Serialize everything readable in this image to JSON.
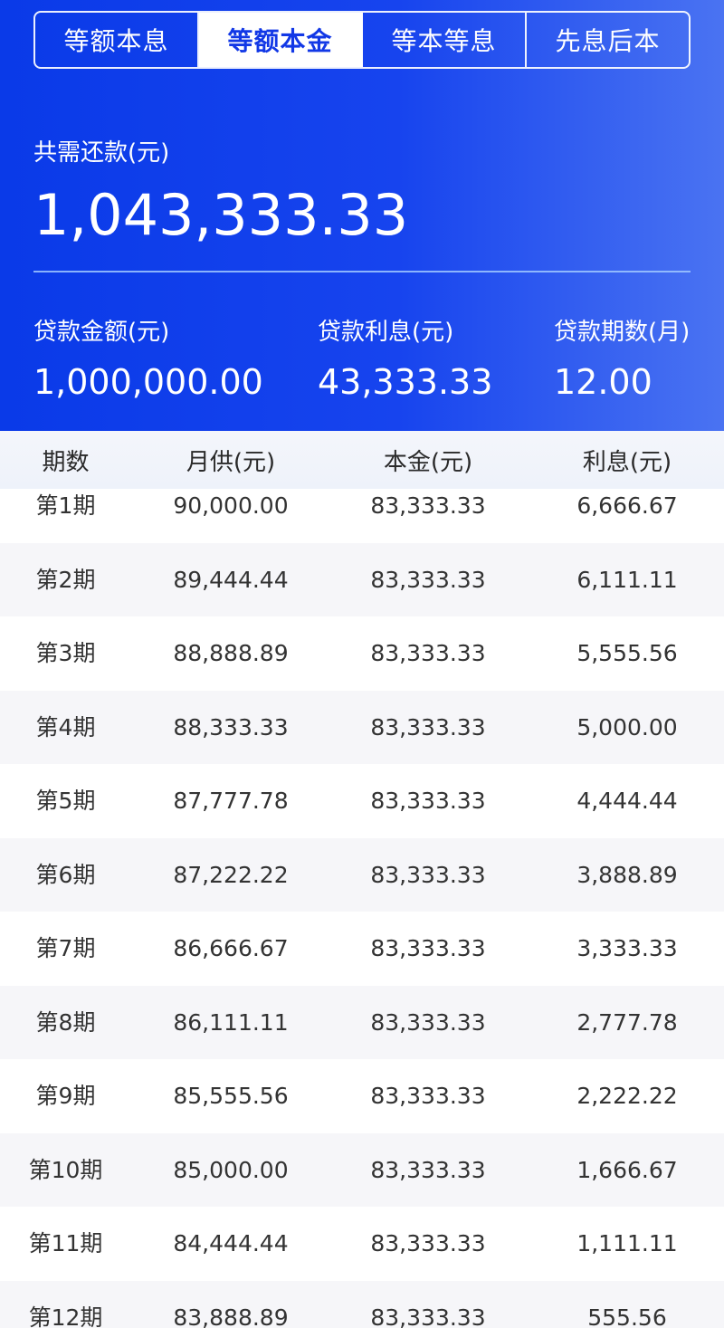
{
  "tabs": [
    {
      "label": "等额本息",
      "active": false
    },
    {
      "label": "等额本金",
      "active": true
    },
    {
      "label": "等本等息",
      "active": false
    },
    {
      "label": "先息后本",
      "active": false
    }
  ],
  "summary": {
    "total_label": "共需还款(元)",
    "total_value": "1,043,333.33",
    "loan_amount_label": "贷款金额(元)",
    "loan_amount_value": "1,000,000.00",
    "interest_label": "贷款利息(元)",
    "interest_value": "43,333.33",
    "months_label": "贷款期数(月)",
    "months_value": "12.00"
  },
  "table": {
    "headers": [
      "期数",
      "月供(元)",
      "本金(元)",
      "利息(元)"
    ],
    "rows": [
      [
        "第1期",
        "90,000.00",
        "83,333.33",
        "6,666.67"
      ],
      [
        "第2期",
        "89,444.44",
        "83,333.33",
        "6,111.11"
      ],
      [
        "第3期",
        "88,888.89",
        "83,333.33",
        "5,555.56"
      ],
      [
        "第4期",
        "88,333.33",
        "83,333.33",
        "5,000.00"
      ],
      [
        "第5期",
        "87,777.78",
        "83,333.33",
        "4,444.44"
      ],
      [
        "第6期",
        "87,222.22",
        "83,333.33",
        "3,888.89"
      ],
      [
        "第7期",
        "86,666.67",
        "83,333.33",
        "3,333.33"
      ],
      [
        "第8期",
        "86,111.11",
        "83,333.33",
        "2,777.78"
      ],
      [
        "第9期",
        "85,555.56",
        "83,333.33",
        "2,222.22"
      ],
      [
        "第10期",
        "85,000.00",
        "83,333.33",
        "1,666.67"
      ],
      [
        "第11期",
        "84,444.44",
        "83,333.33",
        "1,111.11"
      ],
      [
        "第12期",
        "83,888.89",
        "83,333.33",
        "555.56"
      ]
    ]
  },
  "colors": {
    "header_blue": "#1744ee",
    "active_tab_text": "#1238e6",
    "row_alt": "#f6f6f9"
  }
}
